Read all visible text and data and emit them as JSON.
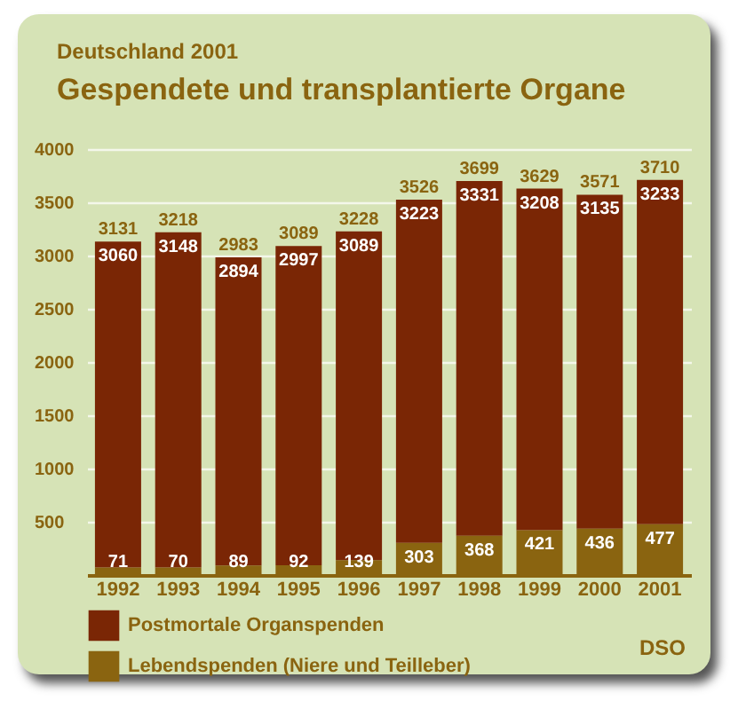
{
  "chart_data": {
    "type": "bar",
    "title": "Gespendete und transplantierte Organe",
    "subtitle": "Deutschland 2001",
    "categories": [
      "1992",
      "1993",
      "1994",
      "1995",
      "1996",
      "1997",
      "1998",
      "1999",
      "2000",
      "2001"
    ],
    "stacked": true,
    "series": [
      {
        "name": "Lebendspenden (Niere und Teilleber)",
        "color": "#8a6410",
        "values": [
          71,
          70,
          89,
          92,
          139,
          303,
          368,
          421,
          436,
          477
        ]
      },
      {
        "name": "Postmortale Organspenden",
        "color": "#7a2605",
        "values": [
          3060,
          3148,
          2894,
          2997,
          3089,
          3223,
          3331,
          3208,
          3135,
          3233
        ]
      }
    ],
    "totals": [
      "3131",
      "3218",
      "2983",
      "3089",
      "3228",
      "3526",
      "3699",
      "3629",
      "3571",
      "3710"
    ],
    "data_labels": true,
    "ylim": [
      0,
      4000
    ],
    "yticks": [
      500,
      1000,
      1500,
      2000,
      2500,
      3000,
      3500,
      4000
    ],
    "grid": "y",
    "legend": "bottom",
    "annotations": [
      "DSO"
    ]
  }
}
